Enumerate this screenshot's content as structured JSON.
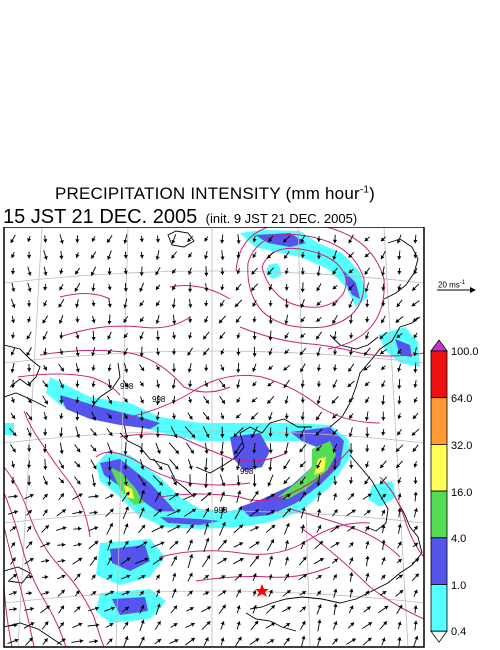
{
  "header": {
    "title_main": "PRECIPITATION INTENSITY (mm hour",
    "title_exp": "-1",
    "title_close": ")",
    "valid_time": "15 JST 21 DEC. 2005",
    "init_time": "(init. 9 JST 21 DEC. 2005)"
  },
  "wind_legend": {
    "label_main": "20 ms",
    "label_exp": "-1"
  },
  "colorbar": {
    "labels": [
      "100.0",
      "64.0",
      "32.0",
      "16.0",
      "4.0",
      "1.0",
      "0.4"
    ],
    "colors": [
      "#cc33cc",
      "#ee1111",
      "#ff9933",
      "#ffff55",
      "#55dd55",
      "#5555ee",
      "#55ffff",
      "#ffffff"
    ]
  },
  "map": {
    "precip_colors": {
      "light": "#55ffff",
      "moderate": "#5555ee",
      "heavy": "#55dd55",
      "intense": "#ffff55"
    },
    "contour_color": "#cc2277",
    "isobar_labels": [
      "998",
      "998",
      "998",
      "998"
    ],
    "marker": "star"
  }
}
